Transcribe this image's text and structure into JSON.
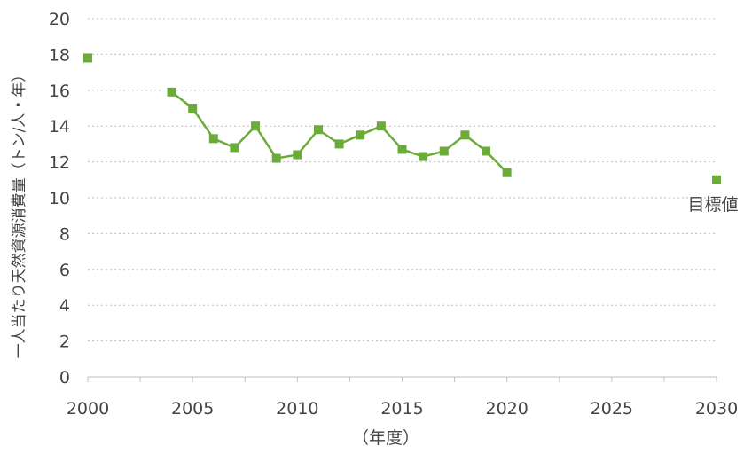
{
  "chart_data": {
    "type": "scatter",
    "xlabel": "（年度）",
    "ylabel": "一人当たり天然資源消費量（トン/人・年）",
    "xlim": [
      2000,
      2030
    ],
    "ylim": [
      0,
      20
    ],
    "x_ticks": [
      "2000",
      "2005",
      "2010",
      "2015",
      "2020",
      "2025",
      "2030"
    ],
    "y_ticks": [
      "0",
      "2",
      "4",
      "6",
      "8",
      "10",
      "12",
      "14",
      "16",
      "18",
      "20"
    ],
    "grid": "horizontal dotted",
    "series": [
      {
        "points": [
          {
            "x": 2000,
            "y": 17.8
          }
        ]
      },
      {
        "points": [
          {
            "x": 2004,
            "y": 15.9
          },
          {
            "x": 2005,
            "y": 15.0
          },
          {
            "x": 2006,
            "y": 13.3
          },
          {
            "x": 2007,
            "y": 12.8
          },
          {
            "x": 2008,
            "y": 14.0
          },
          {
            "x": 2009,
            "y": 12.2
          },
          {
            "x": 2010,
            "y": 12.4
          },
          {
            "x": 2011,
            "y": 13.8
          },
          {
            "x": 2012,
            "y": 13.0
          },
          {
            "x": 2013,
            "y": 13.5
          },
          {
            "x": 2014,
            "y": 14.0
          },
          {
            "x": 2015,
            "y": 12.7
          },
          {
            "x": 2016,
            "y": 12.3
          },
          {
            "x": 2017,
            "y": 12.6
          },
          {
            "x": 2018,
            "y": 13.5
          },
          {
            "x": 2019,
            "y": 12.6
          },
          {
            "x": 2020,
            "y": 11.4
          }
        ]
      },
      {
        "points": [
          {
            "x": 2030,
            "y": 11.0
          }
        ]
      }
    ],
    "annotations": [
      {
        "x": 2030,
        "y": 11.0,
        "text": "目標値"
      }
    ],
    "colors": {
      "series": "#6aab3a",
      "axis_text": "#444444",
      "grid": "#bdbdbd"
    }
  }
}
